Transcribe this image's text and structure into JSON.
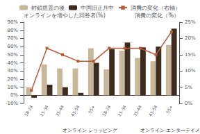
{
  "chart_data": {
    "type": "bar",
    "ylabel": "オンラインを増やした回答者(%)",
    "y2label": "消費の変化（%）",
    "categories": [
      "18-24",
      "25-34",
      "35-44",
      "45-54",
      "55+",
      "18-24",
      "25-34",
      "35-44",
      "45-54",
      "55+"
    ],
    "annotations": [
      "オンライン ショッピング",
      "オンライン エンターテイメント"
    ],
    "series": [
      {
        "name": "封鎖措置の後",
        "type": "bar",
        "color": "#c8b89a",
        "values": [
          10,
          38,
          33,
          33,
          58,
          32,
          55,
          46,
          42,
          62
        ]
      },
      {
        "name": "中国旧正月中",
        "type": "bar",
        "color": "#3d2b1f",
        "values": [
          -3,
          13,
          10,
          3,
          40,
          57,
          65,
          59,
          60,
          82
        ]
      },
      {
        "name": "消費の変化（右軸）",
        "type": "line",
        "axis": "y2",
        "color": "#b85c38",
        "marker": "square",
        "values": [
          4,
          17,
          15,
          13,
          13,
          17,
          17,
          17,
          15,
          22
        ]
      }
    ],
    "ylim": [
      -10,
      90
    ],
    "yticks": [
      {
        "value": -10,
        "label": "-10%"
      },
      {
        "value": 0,
        "label": "0%"
      },
      {
        "value": 10,
        "label": "10%"
      },
      {
        "value": 20,
        "label": "20%"
      },
      {
        "value": 30,
        "label": "30%"
      },
      {
        "value": 40,
        "label": "40%"
      },
      {
        "value": 50,
        "label": "50%"
      },
      {
        "value": 60,
        "label": "60%"
      },
      {
        "value": 70,
        "label": "70%"
      },
      {
        "value": 80,
        "label": "80%"
      },
      {
        "value": 90,
        "label": "90%"
      }
    ],
    "y2lim": [
      0,
      25
    ],
    "y2ticks": [
      {
        "value": 0,
        "label": "0%"
      },
      {
        "value": 5,
        "label": "5%"
      },
      {
        "value": 10,
        "label": "10%"
      },
      {
        "value": 15,
        "label": "15%"
      },
      {
        "value": 20,
        "label": "20%"
      },
      {
        "value": 25,
        "label": "25%"
      }
    ],
    "grid": false,
    "legend": "upper center"
  }
}
